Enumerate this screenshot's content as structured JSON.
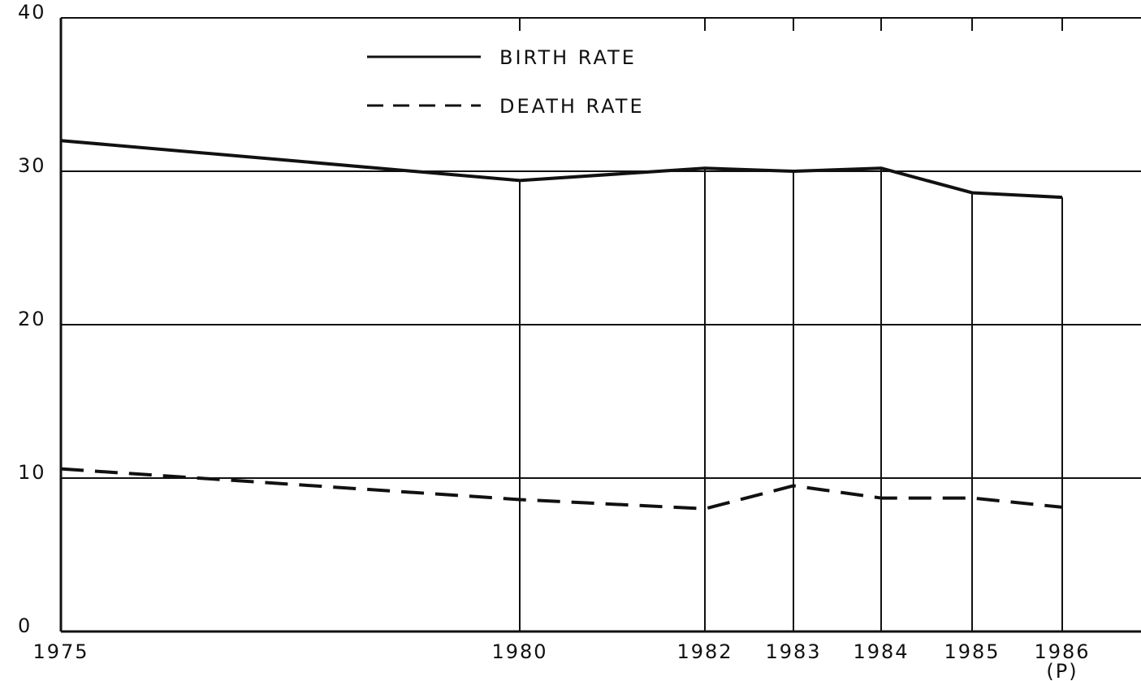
{
  "chart_data": {
    "type": "line",
    "categories": [
      "1975",
      "1980",
      "1982",
      "1983",
      "1984",
      "1985",
      "1986"
    ],
    "annotations": [
      "(P)"
    ],
    "series": [
      {
        "name": "BIRTH RATE",
        "color": "#111111",
        "dash": "solid",
        "values": [
          32,
          29.4,
          30.2,
          30,
          30.2,
          28.6,
          28.3
        ]
      },
      {
        "name": "DEATH RATE",
        "color": "#111111",
        "dash": "dashed",
        "values": [
          10.6,
          8.6,
          8,
          9.5,
          8.7,
          8.7,
          8.1
        ]
      }
    ],
    "ylim": [
      0,
      40
    ],
    "yticks": [
      0,
      10,
      20,
      30,
      40
    ],
    "grid": true
  }
}
